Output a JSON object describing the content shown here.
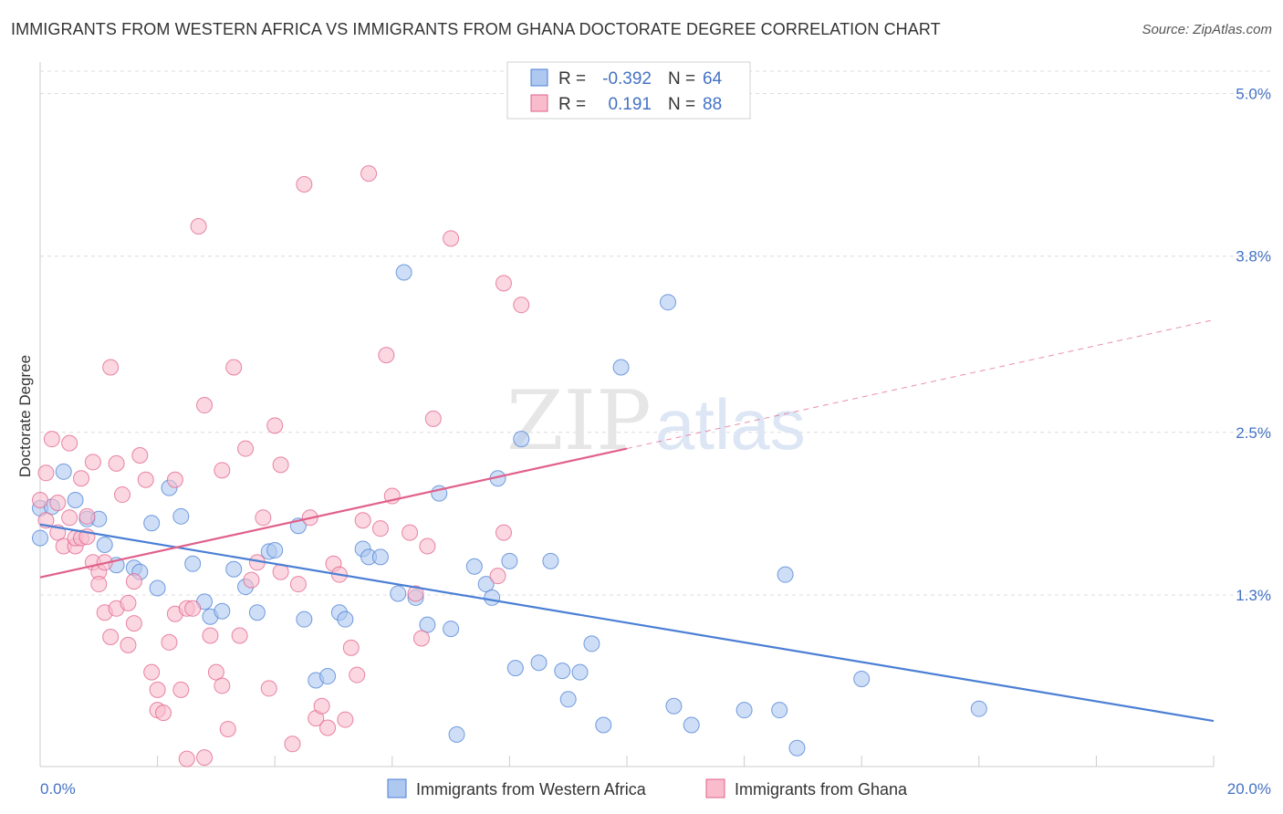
{
  "title": "IMMIGRANTS FROM WESTERN AFRICA VS IMMIGRANTS FROM GHANA DOCTORATE DEGREE CORRELATION CHART",
  "source": "Source: ZipAtlas.com",
  "watermark": {
    "zip": "ZIP",
    "atlas": "atlas"
  },
  "legend": {
    "r_label": "R =",
    "n_label": "N =",
    "rows": [
      {
        "r": "-0.392",
        "n": "64",
        "color": "#aec8f0"
      },
      {
        "r": "0.191",
        "n": "88",
        "color": "#f8bccd"
      }
    ]
  },
  "bottom_legend": [
    {
      "label": "Immigrants from Western Africa",
      "color": "#aec8f0"
    },
    {
      "label": "Immigrants from Ghana",
      "color": "#f8bccd"
    }
  ],
  "chart_data": {
    "type": "scatter",
    "title": "IMMIGRANTS FROM WESTERN AFRICA VS IMMIGRANTS FROM GHANA DOCTORATE DEGREE CORRELATION CHART",
    "xlabel": "",
    "ylabel": "Doctorate Degree",
    "xlim": [
      0,
      20
    ],
    "ylim": [
      0,
      5.2
    ],
    "x_tick_labels": [
      {
        "value": 0,
        "label": "0.0%"
      },
      {
        "value": 20,
        "label": "20.0%"
      }
    ],
    "y_tick_labels": [
      {
        "value": 1.3,
        "label": "1.3%"
      },
      {
        "value": 2.5,
        "label": "2.5%"
      },
      {
        "value": 3.8,
        "label": "3.8%"
      },
      {
        "value": 5.0,
        "label": "5.0%"
      }
    ],
    "grid": true,
    "series": [
      {
        "name": "Immigrants from Western Africa",
        "color": "#4a7fd4",
        "fill": "#aec8f0",
        "trend": {
          "x": [
            0,
            20
          ],
          "y": [
            1.82,
            0.37
          ]
        },
        "points": [
          [
            0.0,
            1.94
          ],
          [
            0.0,
            1.72
          ],
          [
            0.2,
            1.95
          ],
          [
            0.4,
            2.21
          ],
          [
            0.6,
            2.0
          ],
          [
            0.8,
            1.86
          ],
          [
            1.0,
            1.86
          ],
          [
            1.1,
            1.67
          ],
          [
            1.3,
            1.52
          ],
          [
            1.6,
            1.5
          ],
          [
            1.7,
            1.47
          ],
          [
            1.9,
            1.83
          ],
          [
            2.0,
            1.35
          ],
          [
            2.2,
            2.09
          ],
          [
            2.4,
            1.88
          ],
          [
            2.6,
            1.53
          ],
          [
            2.8,
            1.25
          ],
          [
            2.9,
            1.14
          ],
          [
            3.1,
            1.18
          ],
          [
            3.3,
            1.49
          ],
          [
            3.5,
            1.36
          ],
          [
            3.7,
            1.17
          ],
          [
            3.9,
            1.62
          ],
          [
            4.0,
            1.63
          ],
          [
            4.4,
            1.81
          ],
          [
            4.5,
            1.12
          ],
          [
            4.7,
            0.67
          ],
          [
            4.9,
            0.7
          ],
          [
            5.1,
            1.17
          ],
          [
            5.2,
            1.12
          ],
          [
            5.5,
            1.64
          ],
          [
            5.6,
            1.58
          ],
          [
            5.8,
            1.58
          ],
          [
            6.1,
            1.31
          ],
          [
            6.2,
            3.68
          ],
          [
            6.4,
            1.28
          ],
          [
            6.6,
            1.08
          ],
          [
            6.8,
            2.05
          ],
          [
            7.0,
            1.05
          ],
          [
            7.1,
            0.27
          ],
          [
            7.4,
            1.51
          ],
          [
            7.6,
            1.38
          ],
          [
            7.7,
            1.28
          ],
          [
            7.8,
            2.16
          ],
          [
            8.0,
            1.55
          ],
          [
            8.1,
            0.76
          ],
          [
            8.2,
            2.45
          ],
          [
            8.5,
            0.8
          ],
          [
            8.7,
            1.55
          ],
          [
            8.9,
            0.74
          ],
          [
            9.0,
            0.53
          ],
          [
            9.2,
            0.73
          ],
          [
            9.4,
            0.94
          ],
          [
            9.6,
            0.34
          ],
          [
            9.9,
            2.98
          ],
          [
            10.7,
            3.46
          ],
          [
            10.8,
            0.48
          ],
          [
            11.1,
            0.34
          ],
          [
            12.0,
            0.45
          ],
          [
            12.6,
            0.45
          ],
          [
            12.7,
            1.45
          ],
          [
            12.9,
            0.17
          ],
          [
            14.0,
            0.68
          ],
          [
            16.0,
            0.46
          ]
        ]
      },
      {
        "name": "Immigrants from Ghana",
        "color": "#e0608a",
        "fill": "#f8bccd",
        "trend": {
          "x": [
            0,
            10
          ],
          "y": [
            1.43,
            2.38
          ]
        },
        "trend_dashed": {
          "x": [
            10,
            20
          ],
          "y": [
            2.38,
            3.33
          ]
        },
        "points": [
          [
            0.0,
            2.0
          ],
          [
            0.1,
            1.85
          ],
          [
            0.1,
            2.2
          ],
          [
            0.2,
            2.45
          ],
          [
            0.3,
            1.98
          ],
          [
            0.3,
            1.76
          ],
          [
            0.4,
            1.66
          ],
          [
            0.5,
            1.87
          ],
          [
            0.5,
            2.42
          ],
          [
            0.6,
            1.66
          ],
          [
            0.6,
            1.72
          ],
          [
            0.7,
            1.72
          ],
          [
            0.7,
            2.16
          ],
          [
            0.8,
            1.73
          ],
          [
            0.8,
            1.88
          ],
          [
            0.9,
            1.54
          ],
          [
            0.9,
            2.28
          ],
          [
            1.0,
            1.47
          ],
          [
            1.0,
            1.38
          ],
          [
            1.1,
            1.54
          ],
          [
            1.1,
            1.17
          ],
          [
            1.2,
            0.99
          ],
          [
            1.2,
            2.98
          ],
          [
            1.3,
            1.2
          ],
          [
            1.3,
            2.27
          ],
          [
            1.4,
            2.04
          ],
          [
            1.5,
            0.93
          ],
          [
            1.5,
            1.24
          ],
          [
            1.6,
            1.09
          ],
          [
            1.6,
            1.4
          ],
          [
            1.7,
            2.33
          ],
          [
            1.8,
            2.15
          ],
          [
            1.9,
            0.73
          ],
          [
            2.0,
            0.6
          ],
          [
            2.0,
            0.45
          ],
          [
            2.1,
            0.43
          ],
          [
            2.2,
            0.95
          ],
          [
            2.3,
            1.16
          ],
          [
            2.3,
            2.15
          ],
          [
            2.4,
            0.6
          ],
          [
            2.5,
            1.2
          ],
          [
            2.5,
            0.09
          ],
          [
            2.6,
            1.2
          ],
          [
            2.7,
            4.02
          ],
          [
            2.8,
            2.7
          ],
          [
            2.8,
            0.1
          ],
          [
            2.9,
            1.0
          ],
          [
            3.0,
            0.73
          ],
          [
            3.1,
            0.63
          ],
          [
            3.1,
            2.22
          ],
          [
            3.2,
            0.31
          ],
          [
            3.3,
            2.98
          ],
          [
            3.4,
            1.0
          ],
          [
            3.5,
            2.38
          ],
          [
            3.6,
            1.41
          ],
          [
            3.7,
            1.54
          ],
          [
            3.8,
            1.87
          ],
          [
            3.9,
            0.61
          ],
          [
            4.0,
            2.55
          ],
          [
            4.1,
            1.47
          ],
          [
            4.1,
            2.26
          ],
          [
            4.3,
            0.2
          ],
          [
            4.4,
            1.38
          ],
          [
            4.5,
            4.33
          ],
          [
            4.6,
            1.87
          ],
          [
            4.7,
            0.39
          ],
          [
            4.8,
            0.48
          ],
          [
            4.9,
            0.32
          ],
          [
            5.0,
            1.53
          ],
          [
            5.1,
            1.45
          ],
          [
            5.2,
            0.38
          ],
          [
            5.3,
            0.91
          ],
          [
            5.4,
            0.71
          ],
          [
            5.5,
            1.85
          ],
          [
            5.6,
            4.41
          ],
          [
            5.8,
            1.79
          ],
          [
            5.9,
            3.07
          ],
          [
            6.0,
            2.03
          ],
          [
            6.3,
            1.76
          ],
          [
            6.4,
            1.31
          ],
          [
            6.5,
            0.98
          ],
          [
            6.6,
            1.66
          ],
          [
            6.7,
            2.6
          ],
          [
            7.0,
            3.93
          ],
          [
            7.8,
            1.44
          ],
          [
            7.9,
            1.76
          ],
          [
            7.9,
            3.6
          ],
          [
            8.2,
            3.44
          ]
        ]
      }
    ]
  }
}
